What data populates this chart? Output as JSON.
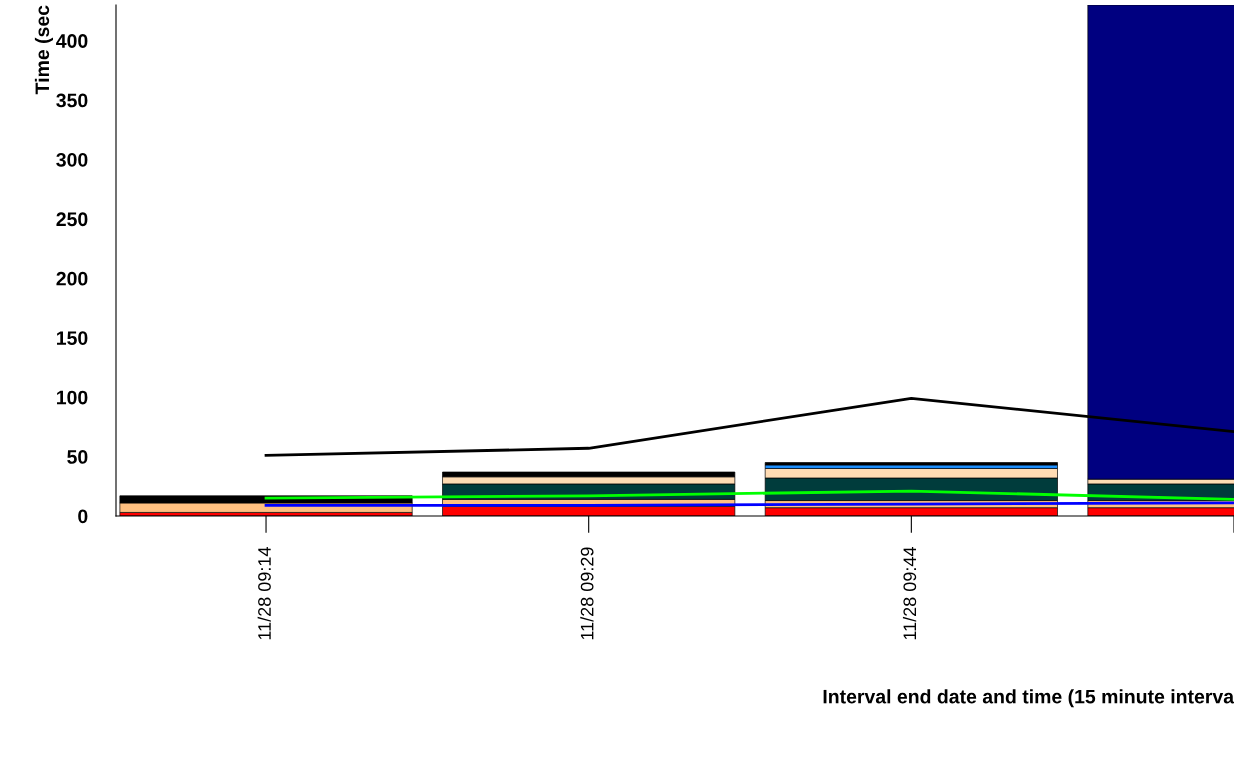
{
  "chart_data": {
    "type": "bar",
    "stacked": true,
    "ylabel": "Time (sec",
    "xlabel": "Interval end date and time (15 minute interva",
    "categories": [
      "11/28 09:14",
      "11/28 09:29",
      "11/28 09:44",
      null
    ],
    "ylim": [
      0,
      430
    ],
    "yticks": [
      0,
      50,
      100,
      150,
      200,
      250,
      300,
      350,
      400
    ],
    "grid": false,
    "legend": false,
    "series": [
      {
        "color": "#ff0000",
        "values": [
          3,
          8,
          7,
          7
        ]
      },
      {
        "color": "#ffc080",
        "values": [
          8,
          6,
          6,
          6
        ]
      },
      {
        "color": "#003c3c",
        "values": [
          0,
          13,
          19,
          14
        ]
      },
      {
        "color": "#ffdcb4",
        "values": [
          0,
          6,
          8,
          4
        ]
      },
      {
        "color": "#1e90ff",
        "values": [
          0,
          0,
          3,
          0
        ]
      },
      {
        "color": "#000000",
        "values": [
          6,
          4,
          2,
          0
        ]
      },
      {
        "color": "#000080",
        "values": [
          0,
          0,
          0,
          399
        ]
      },
      {
        "type": "line",
        "color": "#000000",
        "values": [
          51,
          57,
          99,
          71
        ]
      },
      {
        "type": "line",
        "color": "#00ff00",
        "values": [
          15,
          17,
          21,
          14
        ]
      },
      {
        "type": "line",
        "color": "#0000ff",
        "values": [
          9,
          9,
          10,
          11
        ]
      }
    ]
  }
}
